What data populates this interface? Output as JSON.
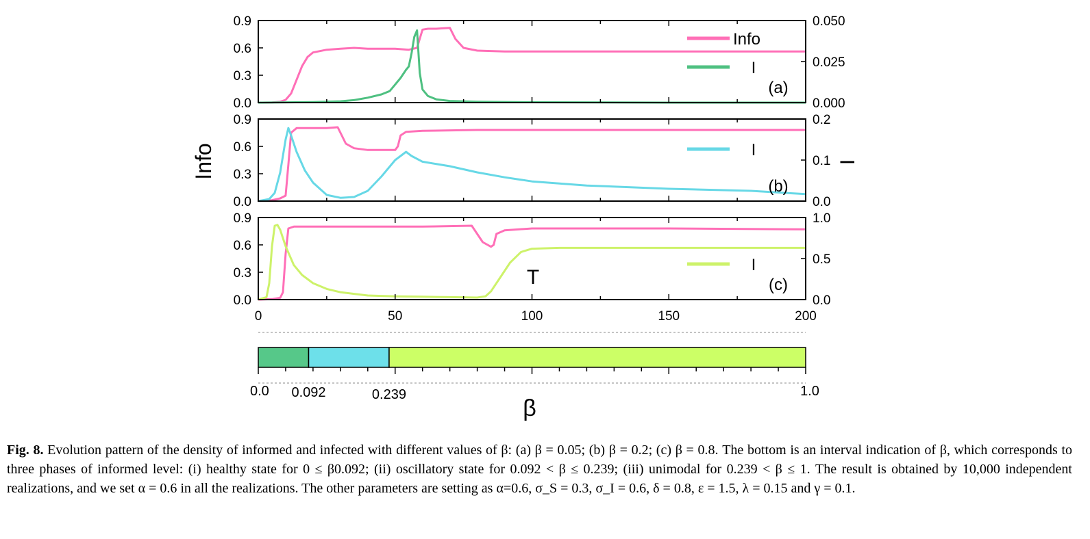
{
  "chart_data": [
    {
      "panel": "(a)",
      "type": "line",
      "left_axis": {
        "label": "Info",
        "ylim": [
          0,
          0.9
        ],
        "ticks": [
          "0.0",
          "0.3",
          "0.6",
          "0.9"
        ]
      },
      "right_axis": {
        "label": "I",
        "ylim": [
          0,
          0.05
        ],
        "ticks": [
          "0.000",
          "0.025",
          "0.050"
        ]
      },
      "x_axis": {
        "label": "T",
        "xlim": [
          0,
          200
        ],
        "ticks": [
          "0",
          "50",
          "100",
          "150",
          "200"
        ]
      },
      "legend": [
        "Info",
        "I"
      ],
      "legend_position": "top-right",
      "series": [
        {
          "name": "Info",
          "axis": "left",
          "color": "#ff6fb7",
          "points": [
            [
              0,
              0
            ],
            [
              5,
              0.002
            ],
            [
              8,
              0.01
            ],
            [
              10,
              0.03
            ],
            [
              12,
              0.1
            ],
            [
              14,
              0.25
            ],
            [
              16,
              0.4
            ],
            [
              18,
              0.5
            ],
            [
              20,
              0.55
            ],
            [
              25,
              0.58
            ],
            [
              30,
              0.59
            ],
            [
              35,
              0.6
            ],
            [
              40,
              0.59
            ],
            [
              45,
              0.59
            ],
            [
              50,
              0.59
            ],
            [
              55,
              0.58
            ],
            [
              58,
              0.6
            ],
            [
              60,
              0.8
            ],
            [
              62,
              0.81
            ],
            [
              65,
              0.81
            ],
            [
              70,
              0.82
            ],
            [
              72,
              0.7
            ],
            [
              75,
              0.6
            ],
            [
              80,
              0.57
            ],
            [
              90,
              0.56
            ],
            [
              100,
              0.56
            ],
            [
              120,
              0.56
            ],
            [
              140,
              0.56
            ],
            [
              160,
              0.56
            ],
            [
              180,
              0.56
            ],
            [
              200,
              0.56
            ]
          ]
        },
        {
          "name": "I",
          "axis": "right",
          "color": "#4ec081",
          "points": [
            [
              0,
              0
            ],
            [
              20,
              0.0003
            ],
            [
              30,
              0.0008
            ],
            [
              35,
              0.0015
            ],
            [
              40,
              0.003
            ],
            [
              45,
              0.005
            ],
            [
              48,
              0.007
            ],
            [
              50,
              0.011
            ],
            [
              52,
              0.015
            ],
            [
              54,
              0.02
            ],
            [
              55,
              0.022
            ],
            [
              56,
              0.03
            ],
            [
              57,
              0.04
            ],
            [
              58,
              0.044
            ],
            [
              59,
              0.018
            ],
            [
              60,
              0.008
            ],
            [
              62,
              0.004
            ],
            [
              65,
              0.002
            ],
            [
              70,
              0.001
            ],
            [
              80,
              0.0005
            ],
            [
              100,
              0.0002
            ],
            [
              150,
              0
            ],
            [
              200,
              0
            ]
          ]
        }
      ]
    },
    {
      "panel": "(b)",
      "type": "line",
      "left_axis": {
        "label": "Info",
        "ylim": [
          0,
          0.9
        ],
        "ticks": [
          "0.0",
          "0.3",
          "0.6",
          "0.9"
        ]
      },
      "right_axis": {
        "label": "I",
        "ylim": [
          0,
          0.2
        ],
        "ticks": [
          "0.0",
          "0.1",
          "0.2"
        ]
      },
      "x_axis": {
        "label": "T",
        "xlim": [
          0,
          200
        ],
        "ticks": [
          "0",
          "50",
          "100",
          "150",
          "200"
        ]
      },
      "legend": [
        "I"
      ],
      "legend_position": "top-right",
      "series": [
        {
          "name": "Info",
          "axis": "left",
          "color": "#ff6fb7",
          "points": [
            [
              0,
              0
            ],
            [
              5,
              0.01
            ],
            [
              8,
              0.03
            ],
            [
              10,
              0.06
            ],
            [
              11,
              0.4
            ],
            [
              12,
              0.75
            ],
            [
              14,
              0.8
            ],
            [
              20,
              0.8
            ],
            [
              25,
              0.8
            ],
            [
              29,
              0.81
            ],
            [
              30,
              0.75
            ],
            [
              32,
              0.63
            ],
            [
              35,
              0.58
            ],
            [
              40,
              0.56
            ],
            [
              45,
              0.56
            ],
            [
              50,
              0.56
            ],
            [
              51,
              0.6
            ],
            [
              52,
              0.72
            ],
            [
              54,
              0.76
            ],
            [
              60,
              0.77
            ],
            [
              80,
              0.78
            ],
            [
              100,
              0.78
            ],
            [
              150,
              0.78
            ],
            [
              200,
              0.78
            ]
          ]
        },
        {
          "name": "I",
          "axis": "right",
          "color": "#67d8e6",
          "points": [
            [
              0,
              0
            ],
            [
              4,
              0.005
            ],
            [
              6,
              0.02
            ],
            [
              8,
              0.07
            ],
            [
              10,
              0.15
            ],
            [
              11,
              0.178
            ],
            [
              12,
              0.16
            ],
            [
              14,
              0.12
            ],
            [
              17,
              0.075
            ],
            [
              20,
              0.045
            ],
            [
              25,
              0.015
            ],
            [
              30,
              0.008
            ],
            [
              35,
              0.01
            ],
            [
              40,
              0.025
            ],
            [
              45,
              0.06
            ],
            [
              50,
              0.1
            ],
            [
              54,
              0.12
            ],
            [
              56,
              0.11
            ],
            [
              60,
              0.096
            ],
            [
              70,
              0.085
            ],
            [
              80,
              0.07
            ],
            [
              90,
              0.058
            ],
            [
              100,
              0.048
            ],
            [
              120,
              0.038
            ],
            [
              150,
              0.03
            ],
            [
              180,
              0.025
            ],
            [
              200,
              0.017
            ]
          ]
        }
      ]
    },
    {
      "panel": "(c)",
      "type": "line",
      "left_axis": {
        "label": "Info",
        "ylim": [
          0,
          0.9
        ],
        "ticks": [
          "0.0",
          "0.3",
          "0.6",
          "0.9"
        ]
      },
      "right_axis": {
        "label": "I",
        "ylim": [
          0,
          1.0
        ],
        "ticks": [
          "0.0",
          "0.5",
          "1.0"
        ]
      },
      "x_axis": {
        "label": "T",
        "xlim": [
          0,
          200
        ],
        "ticks": [
          "0",
          "50",
          "100",
          "150",
          "200"
        ]
      },
      "legend": [
        "I"
      ],
      "legend_position": "top-right",
      "series": [
        {
          "name": "Info",
          "axis": "left",
          "color": "#ff6fb7",
          "points": [
            [
              0,
              0
            ],
            [
              5,
              0.005
            ],
            [
              8,
              0.02
            ],
            [
              9,
              0.08
            ],
            [
              10,
              0.5
            ],
            [
              11,
              0.78
            ],
            [
              13,
              0.8
            ],
            [
              20,
              0.8
            ],
            [
              40,
              0.8
            ],
            [
              60,
              0.8
            ],
            [
              78,
              0.81
            ],
            [
              80,
              0.72
            ],
            [
              82,
              0.63
            ],
            [
              85,
              0.58
            ],
            [
              86,
              0.6
            ],
            [
              87,
              0.72
            ],
            [
              90,
              0.76
            ],
            [
              100,
              0.78
            ],
            [
              150,
              0.78
            ],
            [
              200,
              0.77
            ]
          ]
        },
        {
          "name": "I",
          "axis": "right",
          "color": "#cdf26a",
          "points": [
            [
              0,
              0
            ],
            [
              3,
              0.03
            ],
            [
              4,
              0.2
            ],
            [
              5,
              0.65
            ],
            [
              6,
              0.9
            ],
            [
              7,
              0.91
            ],
            [
              8,
              0.85
            ],
            [
              10,
              0.65
            ],
            [
              13,
              0.42
            ],
            [
              16,
              0.3
            ],
            [
              20,
              0.2
            ],
            [
              25,
              0.13
            ],
            [
              30,
              0.09
            ],
            [
              35,
              0.07
            ],
            [
              40,
              0.05
            ],
            [
              50,
              0.04
            ],
            [
              60,
              0.035
            ],
            [
              70,
              0.03
            ],
            [
              80,
              0.025
            ],
            [
              83,
              0.04
            ],
            [
              85,
              0.1
            ],
            [
              88,
              0.25
            ],
            [
              92,
              0.45
            ],
            [
              96,
              0.58
            ],
            [
              100,
              0.62
            ],
            [
              110,
              0.63
            ],
            [
              150,
              0.63
            ],
            [
              200,
              0.63
            ]
          ]
        }
      ]
    },
    {
      "panel": "phase-bar",
      "type": "bar",
      "x_axis": {
        "label": "β",
        "xlim": [
          0,
          1.0
        ],
        "ticks": [
          "0.0",
          "0.092",
          "0.239",
          "1.0"
        ]
      },
      "segments": [
        {
          "from": 0.0,
          "to": 0.092,
          "color": "#56c889"
        },
        {
          "from": 0.092,
          "to": 0.239,
          "color": "#6de0ea"
        },
        {
          "from": 0.239,
          "to": 1.0,
          "color": "#ccff66"
        }
      ]
    }
  ],
  "caption": {
    "label": "Fig. 8.",
    "text": " Evolution pattern of the density of informed and infected with different values of β: (a) β = 0.05; (b) β = 0.2; (c) β = 0.8. The bottom is an interval indication of β, which corresponds to three phases of informed level: (i) healthy state for 0 ≤ β0.092; (ii) oscillatory state for 0.092 < β ≤ 0.239; (iii) unimodal for 0.239 < β ≤ 1. The result is obtained by 10,000 independent realizations, and we set α = 0.6 in all the realizations. The other parameters are setting as α=0.6, σ_S = 0.3, σ_I = 0.6, δ = 0.8, ε = 1.5, λ = 0.15 and γ = 0.1."
  }
}
